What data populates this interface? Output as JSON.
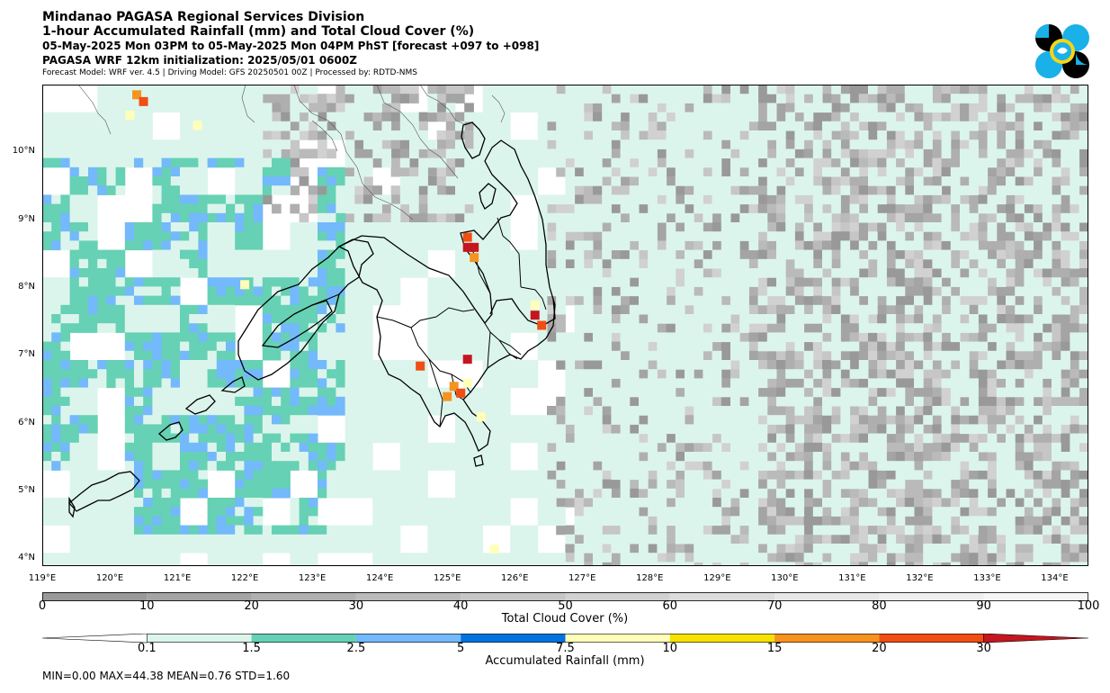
{
  "header": {
    "title": "Mindanao PAGASA Regional Services Division",
    "subtitle": "1-hour Accumulated Rainfall (mm) and Total Cloud Cover (%)",
    "valid_time": "05-May-2025 Mon 03PM to 05-May-2025 Mon 04PM PhST [forecast +097 to +098]",
    "init": "PAGASA WRF 12km initialization: 2025/05/01 0600Z",
    "model_info": "Forecast Model: WRF ver. 4.5 | Driving Model: GFS 20250501 00Z | Processed by: RDTD-NMS"
  },
  "logo": {
    "icon": "pagasa-logo-icon",
    "colors": [
      "#000000",
      "#1ab0e8",
      "#f5d516"
    ]
  },
  "map": {
    "lon_range": [
      119,
      134.5
    ],
    "lat_range": [
      3.9,
      11.0
    ],
    "lon_ticks": [
      "119°E",
      "120°E",
      "121°E",
      "122°E",
      "123°E",
      "124°E",
      "125°E",
      "126°E",
      "127°E",
      "128°E",
      "129°E",
      "130°E",
      "131°E",
      "132°E",
      "133°E",
      "134°E"
    ],
    "lat_ticks": [
      "10°N",
      "9°N",
      "8°N",
      "7°N",
      "6°N",
      "5°N",
      "4°N"
    ],
    "lon_values": [
      119,
      120,
      121,
      122,
      123,
      124,
      125,
      126,
      127,
      128,
      129,
      130,
      131,
      132,
      133,
      134
    ],
    "lat_values": [
      10,
      9,
      8,
      7,
      6,
      5,
      4
    ],
    "rain_cells": [
      {
        "lon": 125.3,
        "lat": 8.75,
        "mm": 20
      },
      {
        "lon": 125.3,
        "lat": 8.6,
        "mm": 30
      },
      {
        "lon": 125.4,
        "lat": 8.6,
        "mm": 44.38
      },
      {
        "lon": 125.4,
        "lat": 8.45,
        "mm": 15
      },
      {
        "lon": 126.3,
        "lat": 7.6,
        "mm": 30
      },
      {
        "lon": 126.4,
        "lat": 7.45,
        "mm": 20
      },
      {
        "lon": 126.3,
        "lat": 7.75,
        "mm": 7.5
      },
      {
        "lon": 125.3,
        "lat": 6.95,
        "mm": 30
      },
      {
        "lon": 124.6,
        "lat": 6.85,
        "mm": 20
      },
      {
        "lon": 125.1,
        "lat": 6.55,
        "mm": 15
      },
      {
        "lon": 125.2,
        "lat": 6.45,
        "mm": 20
      },
      {
        "lon": 125.0,
        "lat": 6.4,
        "mm": 15
      },
      {
        "lon": 125.3,
        "lat": 6.6,
        "mm": 7.5
      },
      {
        "lon": 125.5,
        "lat": 6.1,
        "mm": 7.5
      },
      {
        "lon": 122.0,
        "lat": 8.05,
        "mm": 7.5
      },
      {
        "lon": 120.4,
        "lat": 10.85,
        "mm": 15
      },
      {
        "lon": 120.5,
        "lat": 10.75,
        "mm": 20
      },
      {
        "lon": 120.3,
        "lat": 10.55,
        "mm": 7.5
      },
      {
        "lon": 121.3,
        "lat": 10.4,
        "mm": 7.5
      },
      {
        "lon": 125.7,
        "lat": 4.15,
        "mm": 7.5
      }
    ]
  },
  "cloud_colorbar": {
    "label": "Total Cloud Cover (%)",
    "ticks": [
      "0",
      "10",
      "20",
      "30",
      "40",
      "50",
      "60",
      "70",
      "80",
      "90",
      "100"
    ],
    "tick_values": [
      0,
      10,
      20,
      30,
      40,
      50,
      60,
      70,
      80,
      90,
      100
    ],
    "colors": [
      "#999999",
      "#a4a4a4",
      "#afafaf",
      "#bababa",
      "#c6c6c6",
      "#d1d1d1",
      "#dcdcdc",
      "#e6e6e6",
      "#eeeeee",
      "#f6f6f6"
    ]
  },
  "rain_colorbar": {
    "label": "Accumulated Rainfall (mm)",
    "ticks": [
      "0.1",
      "1.5",
      "2.5",
      "5",
      "7.5",
      "10",
      "15",
      "20",
      "30"
    ],
    "colors": [
      "#dcf5ec",
      "#66d1b4",
      "#73b9fb",
      "#0073df",
      "#ffffb9",
      "#f7e100",
      "#f6931f",
      "#f04e13",
      "#c41620"
    ]
  },
  "stats": "MIN=0.00   MAX=44.38   MEAN=0.76   STD=1.60"
}
